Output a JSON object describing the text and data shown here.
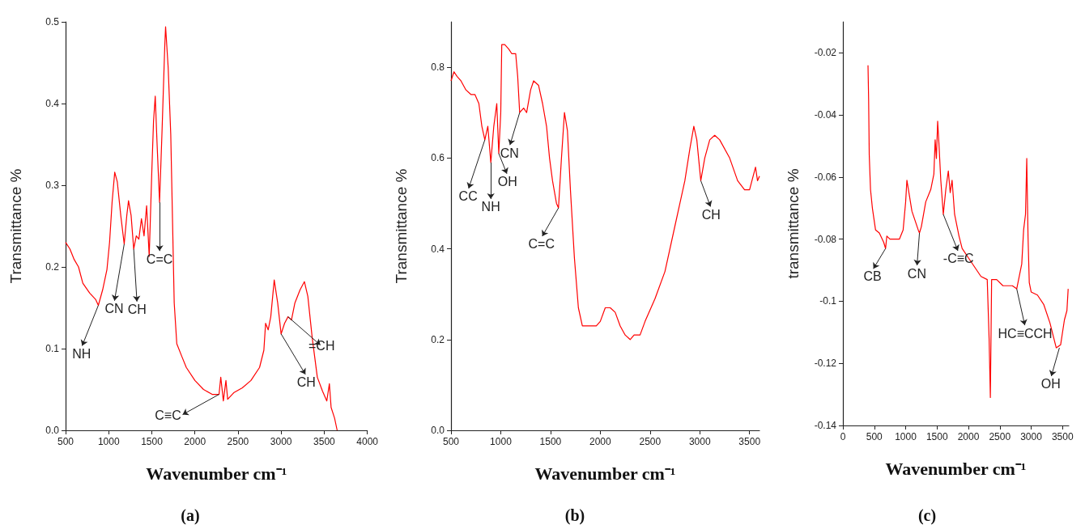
{
  "chart_data": [
    {
      "type": "line",
      "title": "(a)",
      "xlabel": "Wavenumber cm⁻¹",
      "ylabel": "Transmittance %",
      "xlim": [
        500,
        4000
      ],
      "xticks": [
        500,
        1000,
        1500,
        2000,
        2500,
        3000,
        3500,
        4000
      ],
      "ylim": [
        0,
        0.5
      ],
      "yticks": [
        {
          "value": 0,
          "label": "0.0"
        },
        0.1,
        0.2,
        0.3,
        0.4,
        0.5
      ],
      "series": [
        {
          "color": "#ff0000",
          "x": [
            500,
            550,
            600,
            650,
            700,
            780,
            850,
            880,
            930,
            980,
            1010,
            1040,
            1070,
            1100,
            1140,
            1180,
            1210,
            1230,
            1260,
            1290,
            1320,
            1350,
            1380,
            1410,
            1440,
            1470,
            1500,
            1520,
            1540,
            1560,
            1590,
            1620,
            1650,
            1660,
            1690,
            1720,
            1740,
            1760,
            1790,
            1850,
            1900,
            2000,
            2100,
            2200,
            2280,
            2300,
            2330,
            2360,
            2380,
            2450,
            2550,
            2650,
            2750,
            2800,
            2820,
            2850,
            2880,
            2920,
            2960,
            3000,
            3040,
            3080,
            3120,
            3160,
            3220,
            3270,
            3310,
            3360,
            3420,
            3480,
            3530,
            3560,
            3580,
            3620,
            3650
          ],
          "values": [
            0.23,
            0.222,
            0.209,
            0.2,
            0.18,
            0.168,
            0.16,
            0.153,
            0.172,
            0.197,
            0.23,
            0.28,
            0.316,
            0.304,
            0.263,
            0.228,
            0.263,
            0.281,
            0.263,
            0.222,
            0.238,
            0.234,
            0.259,
            0.238,
            0.275,
            0.213,
            0.316,
            0.378,
            0.409,
            0.354,
            0.279,
            0.37,
            0.469,
            0.494,
            0.444,
            0.362,
            0.259,
            0.156,
            0.106,
            0.09,
            0.077,
            0.061,
            0.05,
            0.044,
            0.044,
            0.065,
            0.036,
            0.061,
            0.038,
            0.046,
            0.052,
            0.061,
            0.077,
            0.098,
            0.131,
            0.123,
            0.139,
            0.184,
            0.156,
            0.118,
            0.131,
            0.139,
            0.135,
            0.156,
            0.172,
            0.182,
            0.164,
            0.114,
            0.065,
            0.048,
            0.036,
            0.057,
            0.028,
            0.015,
            0.0
          ]
        }
      ],
      "annotations": [
        {
          "text": "NH",
          "x": 880,
          "y": 0.153
        },
        {
          "text": "CN",
          "x": 1180,
          "y": 0.228
        },
        {
          "text": "CH",
          "x": 1290,
          "y": 0.222
        },
        {
          "text": "C=C",
          "x": 1590,
          "y": 0.279
        },
        {
          "text": "C≡C",
          "x": 2280,
          "y": 0.044
        },
        {
          "text": "CH",
          "x": 3000,
          "y": 0.118
        },
        {
          "text": "=CH",
          "x": 3080,
          "y": 0.139
        }
      ]
    },
    {
      "type": "line",
      "title": "(b)",
      "xlabel": "Wavenumber cm⁻¹",
      "ylabel": "Transmittance %",
      "xlim": [
        500,
        3600
      ],
      "xticks": [
        500,
        1000,
        1500,
        2000,
        2500,
        3000,
        3500
      ],
      "ylim": [
        0,
        0.9
      ],
      "yticks": [
        {
          "value": 0,
          "label": "0.0"
        },
        0.2,
        0.4,
        0.6,
        0.8
      ],
      "series": [
        {
          "color": "#ff0000",
          "x": [
            500,
            530,
            560,
            600,
            650,
            700,
            740,
            780,
            810,
            840,
            870,
            900,
            930,
            960,
            980,
            1000,
            1010,
            1040,
            1080,
            1110,
            1150,
            1170,
            1190,
            1230,
            1260,
            1300,
            1330,
            1380,
            1420,
            1460,
            1490,
            1520,
            1560,
            1580,
            1610,
            1640,
            1670,
            1700,
            1740,
            1780,
            1820,
            1880,
            1920,
            1960,
            2000,
            2050,
            2100,
            2150,
            2200,
            2250,
            2300,
            2340,
            2400,
            2450,
            2550,
            2650,
            2750,
            2850,
            2900,
            2940,
            2970,
            3010,
            3050,
            3100,
            3150,
            3200,
            3300,
            3380,
            3450,
            3500,
            3560,
            3580,
            3600
          ],
          "values": [
            0.77,
            0.79,
            0.78,
            0.77,
            0.75,
            0.74,
            0.74,
            0.72,
            0.67,
            0.64,
            0.67,
            0.59,
            0.67,
            0.72,
            0.61,
            0.7,
            0.85,
            0.85,
            0.84,
            0.83,
            0.83,
            0.78,
            0.7,
            0.71,
            0.7,
            0.75,
            0.77,
            0.76,
            0.72,
            0.67,
            0.6,
            0.55,
            0.5,
            0.49,
            0.6,
            0.7,
            0.66,
            0.53,
            0.38,
            0.27,
            0.23,
            0.23,
            0.23,
            0.23,
            0.24,
            0.27,
            0.27,
            0.26,
            0.23,
            0.21,
            0.2,
            0.21,
            0.21,
            0.24,
            0.29,
            0.35,
            0.45,
            0.55,
            0.62,
            0.67,
            0.64,
            0.55,
            0.6,
            0.64,
            0.65,
            0.64,
            0.6,
            0.55,
            0.53,
            0.53,
            0.58,
            0.55,
            0.56
          ]
        }
      ],
      "annotations": [
        {
          "text": "CC",
          "x": 840,
          "y": 0.64
        },
        {
          "text": "NH",
          "x": 900,
          "y": 0.59
        },
        {
          "text": "OH",
          "x": 980,
          "y": 0.61
        },
        {
          "text": "CN",
          "x": 1190,
          "y": 0.7
        },
        {
          "text": "C=C",
          "x": 1580,
          "y": 0.49
        },
        {
          "text": "CH",
          "x": 3010,
          "y": 0.55
        }
      ]
    },
    {
      "type": "line",
      "title": "(c)",
      "xlabel": "Wavenumber cm⁻¹",
      "ylabel": "transmittance %",
      "xlim": [
        0,
        3600
      ],
      "xticks": [
        0,
        500,
        1000,
        1500,
        2000,
        2500,
        3000,
        3500
      ],
      "ylim": [
        -0.14,
        -0.01
      ],
      "yticks": [
        -0.14,
        -0.12,
        -0.1,
        -0.08,
        -0.06,
        -0.04,
        -0.02
      ],
      "series": [
        {
          "color": "#ff0000",
          "x": [
            400,
            410,
            420,
            440,
            470,
            520,
            580,
            650,
            680,
            700,
            750,
            800,
            900,
            960,
            1000,
            1020,
            1060,
            1100,
            1150,
            1200,
            1220,
            1250,
            1320,
            1400,
            1450,
            1470,
            1490,
            1510,
            1530,
            1560,
            1600,
            1640,
            1680,
            1710,
            1740,
            1780,
            1850,
            1900,
            2000,
            2100,
            2200,
            2300,
            2330,
            2350,
            2370,
            2450,
            2550,
            2700,
            2770,
            2850,
            2880,
            2910,
            2930,
            2950,
            2970,
            3000,
            3100,
            3200,
            3300,
            3400,
            3470,
            3530,
            3570,
            3590
          ],
          "values": [
            -0.024,
            -0.035,
            -0.053,
            -0.064,
            -0.07,
            -0.077,
            -0.078,
            -0.081,
            -0.083,
            -0.079,
            -0.08,
            -0.08,
            -0.08,
            -0.077,
            -0.068,
            -0.061,
            -0.066,
            -0.071,
            -0.074,
            -0.077,
            -0.078,
            -0.076,
            -0.068,
            -0.064,
            -0.059,
            -0.048,
            -0.054,
            -0.042,
            -0.049,
            -0.061,
            -0.072,
            -0.064,
            -0.058,
            -0.065,
            -0.061,
            -0.072,
            -0.079,
            -0.083,
            -0.086,
            -0.089,
            -0.092,
            -0.093,
            -0.112,
            -0.131,
            -0.093,
            -0.093,
            -0.095,
            -0.095,
            -0.096,
            -0.088,
            -0.077,
            -0.072,
            -0.054,
            -0.079,
            -0.094,
            -0.097,
            -0.098,
            -0.101,
            -0.107,
            -0.115,
            -0.114,
            -0.106,
            -0.103,
            -0.096
          ]
        }
      ],
      "annotations": [
        {
          "text": "CB",
          "x": 680,
          "y": -0.083
        },
        {
          "text": "CN",
          "x": 1220,
          "y": -0.078
        },
        {
          "text": "-C≡C",
          "x": 1600,
          "y": -0.072
        },
        {
          "text": "HC≡CCH",
          "x": 2770,
          "y": -0.096
        },
        {
          "text": "OH",
          "x": 3450,
          "y": -0.115
        }
      ]
    }
  ]
}
